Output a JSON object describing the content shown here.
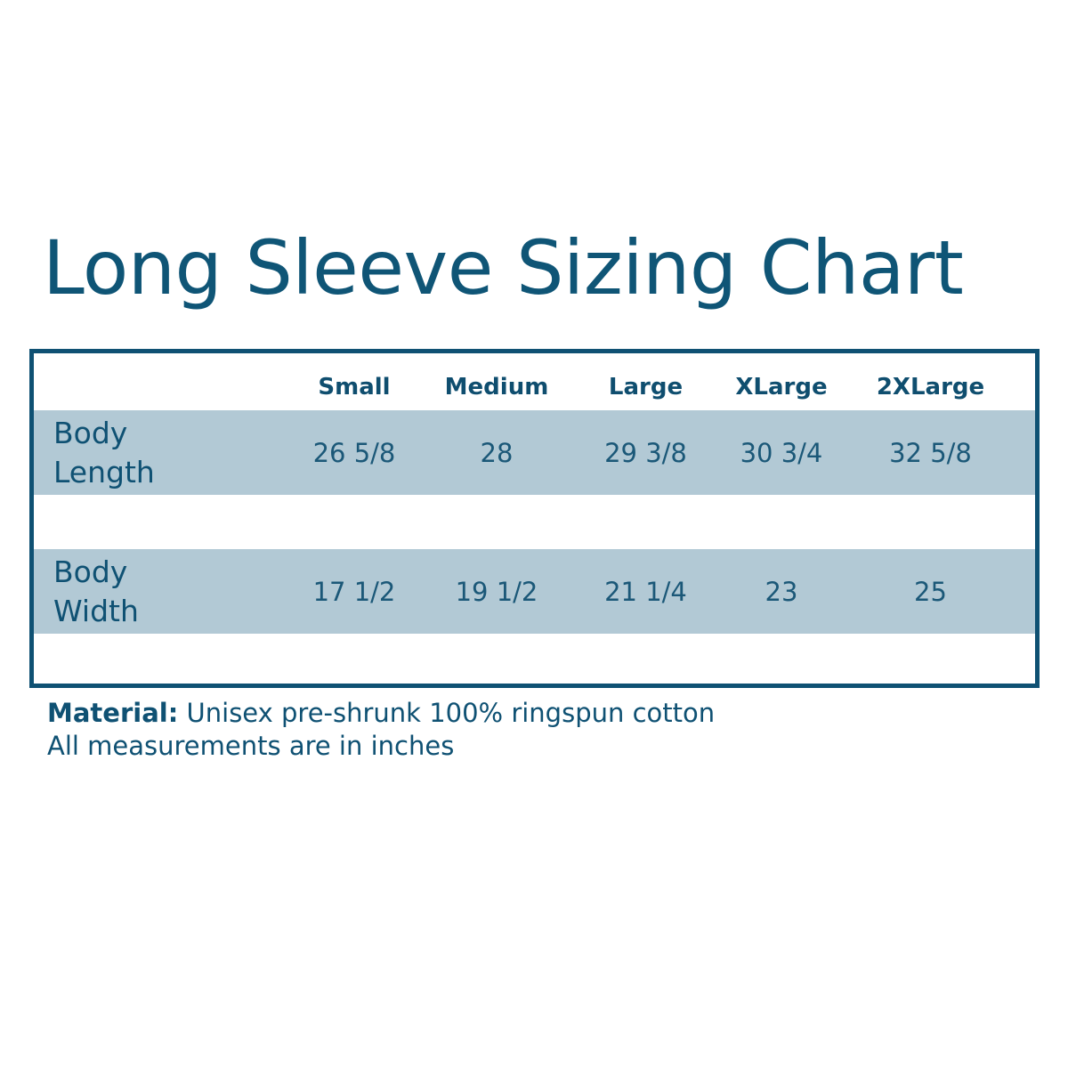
{
  "title": "Long Sleeve Sizing Chart",
  "table": {
    "columns": [
      "Small",
      "Medium",
      "Large",
      "XLarge",
      "2XLarge"
    ],
    "rows": [
      {
        "label_line1": "Body",
        "label_line2": "Length",
        "values": [
          "26 5/8",
          "28",
          "29 3/8",
          "30 3/4",
          "32 5/8"
        ]
      },
      {
        "label_line1": "Body",
        "label_line2": "Width",
        "values": [
          "17 1/2",
          "19 1/2",
          "21 1/4",
          "23",
          "25"
        ]
      }
    ]
  },
  "notes": {
    "material_label": "Material:",
    "material_value": " Unisex pre-shrunk 100% ringspun cotton",
    "units": "All measurements are in inches"
  },
  "colors": {
    "primary": "#0f5173",
    "band": "#b2c9d5"
  }
}
